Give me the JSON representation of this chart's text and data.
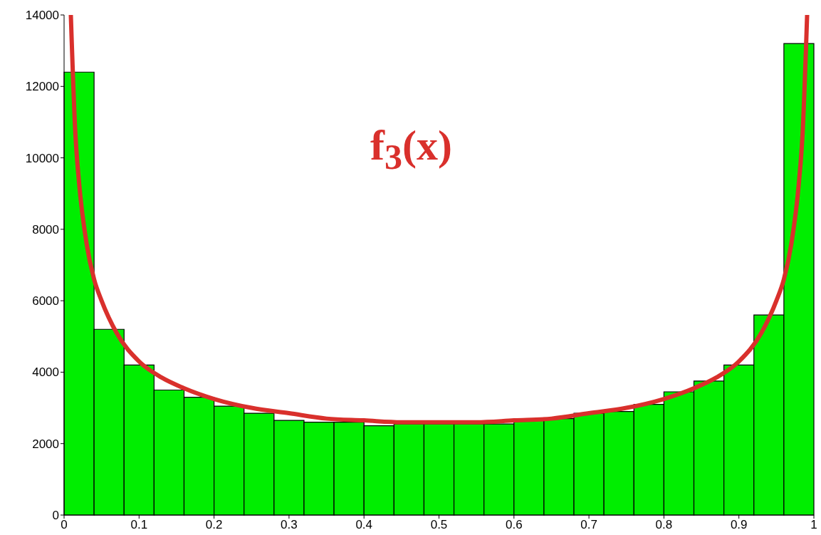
{
  "chart_data": {
    "type": "histogram",
    "bins": [
      0,
      0.04,
      0.08,
      0.12,
      0.16,
      0.2,
      0.24,
      0.28,
      0.32,
      0.36,
      0.4,
      0.44,
      0.48,
      0.52,
      0.56,
      0.6,
      0.64,
      0.68,
      0.72,
      0.76,
      0.8,
      0.84,
      0.88,
      0.92,
      0.96,
      1
    ],
    "values": [
      12400,
      5200,
      4200,
      3500,
      3300,
      3050,
      2850,
      2650,
      2600,
      2600,
      2500,
      2550,
      2550,
      2550,
      2550,
      2700,
      2700,
      2850,
      2900,
      3100,
      3450,
      3750,
      4200,
      5600,
      13200
    ],
    "color": "#00ee00",
    "series": [
      {
        "name": "f$_{3}$(x)",
        "type": "line",
        "color": "#d9302c",
        "x": [
          0.009,
          0.015,
          0.02,
          0.03,
          0.04,
          0.05,
          0.07,
          0.1,
          0.13,
          0.16,
          0.2,
          0.25,
          0.3,
          0.35,
          0.4,
          0.45,
          0.5,
          0.55,
          0.6,
          0.65,
          0.7,
          0.75,
          0.8,
          0.84,
          0.87,
          0.9,
          0.93,
          0.95,
          0.96,
          0.97,
          0.98,
          0.985,
          0.991
        ],
        "values": [
          14000,
          10700,
          9300,
          7600,
          6600,
          6000,
          5100,
          4300,
          3850,
          3550,
          3250,
          3000,
          2850,
          2700,
          2650,
          2600,
          2600,
          2600,
          2650,
          2700,
          2850,
          3000,
          3250,
          3550,
          3850,
          4300,
          5100,
          6000,
          6600,
          7600,
          9300,
          10700,
          14000
        ]
      }
    ],
    "xlim": [
      0,
      1
    ],
    "xticks": [
      0,
      0.1,
      0.2,
      0.3,
      0.4,
      0.5,
      0.6,
      0.7,
      0.8,
      0.9,
      1
    ],
    "ylim": [
      0,
      14000
    ],
    "yticks": [
      0,
      2000,
      4000,
      6000,
      8000,
      10000,
      12000,
      14000
    ]
  }
}
